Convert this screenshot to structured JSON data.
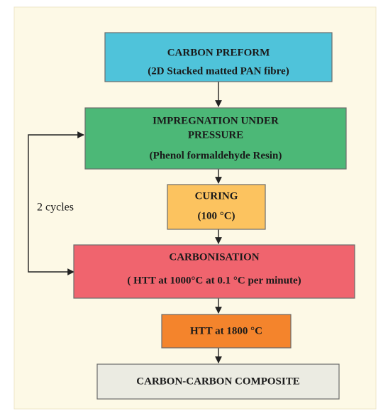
{
  "nodes": [
    {
      "lines": [
        "CARBON PREFORM",
        "(2D Stacked matted PAN fibre)"
      ]
    },
    {
      "lines": [
        "IMPREGNATION UNDER",
        "PRESSURE",
        "(Phenol formaldehyde Resin)"
      ]
    },
    {
      "lines": [
        "CURING",
        "(100 °C)"
      ]
    },
    {
      "lines": [
        "CARBONISATION",
        "( HTT at 1000°C at 0.1 °C per minute)"
      ]
    },
    {
      "lines": [
        "HTT at 1800 °C"
      ]
    },
    {
      "lines": [
        "CARBON-CARBON COMPOSITE"
      ]
    }
  ],
  "loop_label": "2 cycles"
}
